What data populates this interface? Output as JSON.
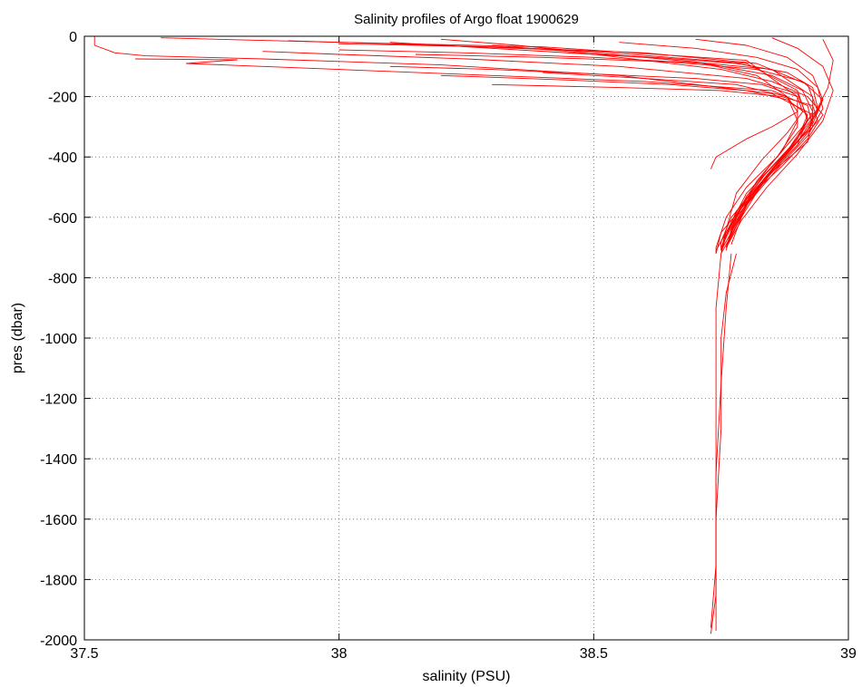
{
  "chart_data": {
    "type": "line",
    "title": "Salinity profiles of Argo float 1900629",
    "xlabel": "salinity (PSU)",
    "ylabel": "pres (dbar)",
    "xlim": [
      37.5,
      39
    ],
    "ylim": [
      -2000,
      0
    ],
    "x_ticks": [
      37.5,
      38,
      38.5,
      39
    ],
    "x_tick_labels": [
      "37.5",
      "38",
      "38.5",
      "39"
    ],
    "y_ticks": [
      0,
      -200,
      -400,
      -600,
      -800,
      -1000,
      -1200,
      -1400,
      -1600,
      -1800,
      -2000
    ],
    "y_tick_labels": [
      "0",
      "-200",
      "-400",
      "-600",
      "-800",
      "-1000",
      "-1200",
      "-1400",
      "-1600",
      "-1800",
      "-2000"
    ],
    "grid": true,
    "line_color": "#ff0000",
    "series": [
      {
        "x": [
          37.52,
          37.52,
          37.56,
          37.62,
          37.85,
          38.2,
          38.55,
          38.85,
          38.93,
          38.92,
          38.85,
          38.8,
          38.75,
          38.74
        ],
        "y": [
          0,
          -30,
          -55,
          -65,
          -75,
          -95,
          -130,
          -190,
          -260,
          -350,
          -450,
          -550,
          -650,
          -720
        ]
      },
      {
        "x": [
          37.65,
          38.0,
          38.4,
          38.8,
          38.9,
          38.9,
          38.86,
          38.8,
          38.76,
          38.74,
          38.74
        ],
        "y": [
          -5,
          -20,
          -35,
          -80,
          -200,
          -300,
          -400,
          -500,
          -600,
          -700,
          -720
        ]
      },
      {
        "x": [
          37.9,
          38.2,
          38.5,
          38.8,
          38.9,
          38.92,
          38.88,
          38.8,
          38.76,
          38.74
        ],
        "y": [
          -15,
          -30,
          -50,
          -90,
          -180,
          -280,
          -380,
          -520,
          -650,
          -710
        ]
      },
      {
        "x": [
          38.1,
          38.3,
          38.6,
          38.85,
          38.93,
          38.93,
          38.88,
          38.82,
          38.77,
          38.75,
          38.75
        ],
        "y": [
          -20,
          -40,
          -70,
          -110,
          -200,
          -290,
          -390,
          -500,
          -600,
          -680,
          -710
        ]
      },
      {
        "x": [
          37.85,
          38.0,
          38.25,
          38.55,
          38.8,
          38.9,
          38.92,
          38.9,
          38.84,
          38.78,
          38.76
        ],
        "y": [
          -50,
          -60,
          -75,
          -100,
          -140,
          -190,
          -270,
          -360,
          -470,
          -600,
          -700
        ]
      },
      {
        "x": [
          37.6,
          37.8,
          37.7,
          38.0,
          38.3,
          38.6,
          38.85,
          38.92,
          38.93,
          38.88,
          38.83,
          38.78,
          38.76,
          38.75
        ],
        "y": [
          -75,
          -78,
          -90,
          -110,
          -130,
          -150,
          -180,
          -230,
          -300,
          -380,
          -470,
          -580,
          -660,
          -710
        ]
      },
      {
        "x": [
          38.2,
          38.35,
          38.5,
          38.7,
          38.82,
          38.88,
          38.9,
          38.87,
          38.82,
          38.78,
          38.75
        ],
        "y": [
          -10,
          -30,
          -55,
          -85,
          -130,
          -200,
          -280,
          -380,
          -480,
          -600,
          -700
        ]
      },
      {
        "x": [
          38.3,
          38.45,
          38.6,
          38.75,
          38.85,
          38.92,
          38.95,
          38.92,
          38.87,
          38.8,
          38.76,
          38.75
        ],
        "y": [
          -30,
          -50,
          -80,
          -110,
          -150,
          -200,
          -260,
          -340,
          -430,
          -540,
          -650,
          -710
        ]
      },
      {
        "x": [
          38.1,
          38.3,
          38.5,
          38.7,
          38.83,
          38.9,
          38.91,
          38.88,
          38.83,
          38.78,
          38.76,
          38.75
        ],
        "y": [
          -100,
          -110,
          -125,
          -140,
          -160,
          -200,
          -250,
          -320,
          -410,
          -520,
          -640,
          -710
        ]
      },
      {
        "x": [
          38.55,
          38.7,
          38.82,
          38.9,
          38.94,
          38.95,
          38.92,
          38.86,
          38.8,
          38.77,
          38.76
        ],
        "y": [
          -20,
          -40,
          -70,
          -110,
          -170,
          -240,
          -330,
          -440,
          -560,
          -650,
          -700
        ]
      },
      {
        "x": [
          38.7,
          38.8,
          38.88,
          38.93,
          38.95,
          38.92,
          38.86,
          38.81,
          38.78,
          38.76
        ],
        "y": [
          -10,
          -30,
          -70,
          -130,
          -210,
          -310,
          -420,
          -530,
          -630,
          -700
        ]
      },
      {
        "x": [
          38.0,
          38.25,
          38.5,
          38.72,
          38.85,
          38.91,
          38.93,
          38.9,
          38.84,
          38.79,
          38.76,
          38.75
        ],
        "y": [
          -45,
          -55,
          -70,
          -90,
          -130,
          -180,
          -250,
          -340,
          -450,
          -560,
          -660,
          -720
        ]
      },
      {
        "x": [
          38.2,
          38.45,
          38.65,
          38.8,
          38.88,
          38.92,
          38.9,
          38.85,
          38.8,
          38.77,
          38.75
        ],
        "y": [
          -130,
          -145,
          -160,
          -180,
          -210,
          -260,
          -340,
          -440,
          -550,
          -650,
          -710
        ]
      },
      {
        "x": [
          38.85,
          38.9,
          38.95,
          38.97,
          38.95,
          38.9,
          38.84,
          38.79,
          38.76
        ],
        "y": [
          -5,
          -40,
          -100,
          -180,
          -280,
          -390,
          -500,
          -610,
          -700
        ]
      },
      {
        "x": [
          38.95,
          38.97,
          38.96,
          38.93,
          38.88,
          38.83,
          38.79,
          38.77
        ],
        "y": [
          -10,
          -80,
          -170,
          -270,
          -380,
          -490,
          -600,
          -690
        ]
      },
      {
        "x": [
          38.4,
          38.6,
          38.78,
          38.88,
          38.9,
          38.85,
          38.8,
          38.74,
          38.73
        ],
        "y": [
          -120,
          -140,
          -160,
          -200,
          -250,
          -300,
          -340,
          -400,
          -440
        ]
      },
      {
        "x": [
          38.0,
          38.3,
          38.6,
          38.82,
          38.92,
          38.94,
          38.9,
          38.84,
          38.78,
          38.76
        ],
        "y": [
          -25,
          -35,
          -55,
          -90,
          -160,
          -250,
          -350,
          -460,
          -590,
          -700
        ]
      },
      {
        "x": [
          38.3,
          38.55,
          38.75,
          38.87,
          38.93,
          38.94,
          38.9,
          38.85,
          38.8,
          38.77,
          38.75
        ],
        "y": [
          -160,
          -170,
          -180,
          -200,
          -230,
          -280,
          -360,
          -450,
          -560,
          -660,
          -720
        ]
      },
      {
        "x": [
          38.45,
          38.62,
          38.78,
          38.88,
          38.93,
          38.94,
          38.9,
          38.85,
          38.8,
          38.77,
          38.76
        ],
        "y": [
          -55,
          -70,
          -90,
          -120,
          -170,
          -240,
          -320,
          -420,
          -530,
          -640,
          -710
        ]
      },
      {
        "x": [
          38.15,
          38.4,
          38.65,
          38.82,
          38.91,
          38.95,
          38.93,
          38.88,
          38.82,
          38.78,
          38.76
        ],
        "y": [
          -60,
          -70,
          -85,
          -110,
          -150,
          -210,
          -290,
          -390,
          -500,
          -610,
          -700
        ]
      },
      {
        "x": [
          38.75,
          38.74,
          38.74,
          38.74,
          38.74,
          38.74,
          38.74
        ],
        "y": [
          -720,
          -900,
          -1100,
          -1400,
          -1700,
          -1900,
          -1970
        ]
      },
      {
        "x": [
          38.78,
          38.76,
          38.75,
          38.75,
          38.74,
          38.74,
          38.73
        ],
        "y": [
          -720,
          -850,
          -1000,
          -1300,
          -1600,
          -1850,
          -1980
        ]
      },
      {
        "x": [
          38.77,
          38.76,
          38.75,
          38.74,
          38.74,
          38.73
        ],
        "y": [
          -720,
          -900,
          -1150,
          -1450,
          -1750,
          -1960
        ]
      }
    ]
  }
}
